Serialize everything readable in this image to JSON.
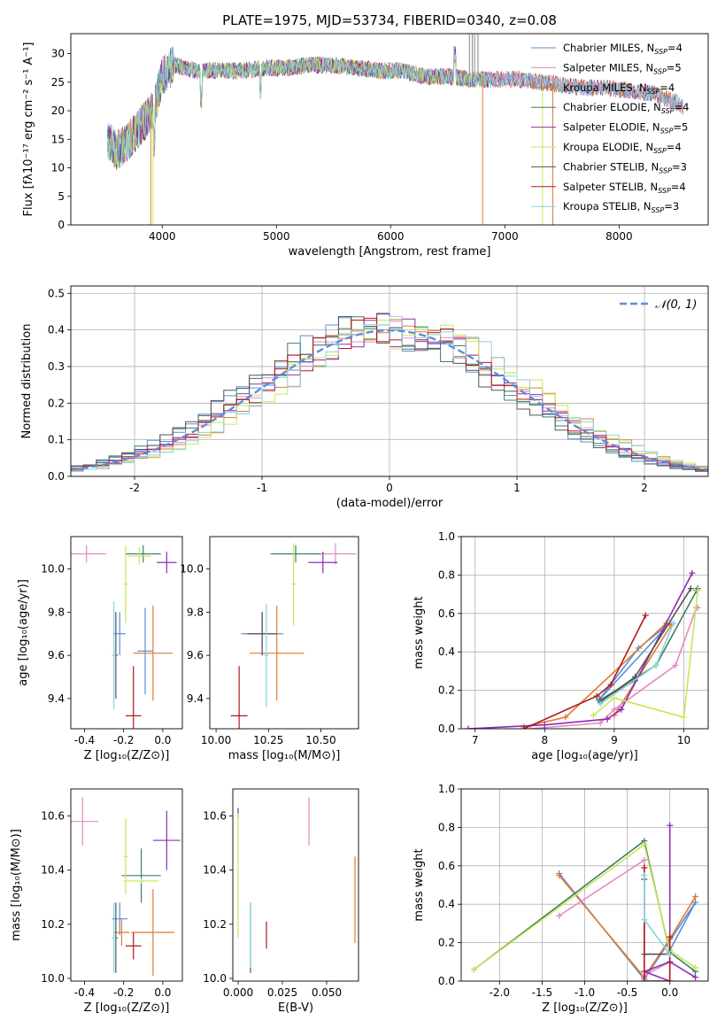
{
  "figure_title": "PLATE=1975, MJD=53734, FIBERID=0340, z=0.08",
  "colors": {
    "C_MILES": "#5b8fd6",
    "S_MILES": "#e38bc3",
    "K_MILES": "#e07b2e",
    "C_ELODIE": "#3f7f5f",
    "S_ELODIE": "#8e2cb5",
    "K_ELODIE": "#c9e65a",
    "C_STELIB": "#555555",
    "S_STELIB": "#b11a1a",
    "K_STELIB": "#86d4df",
    "gauss": "#5b8fd6"
  },
  "chart_data": [
    {
      "id": "spectrum",
      "type": "line",
      "title": "PLATE=1975, MJD=53734, FIBERID=0340, z=0.08",
      "xlabel": "wavelength [Angstrom, rest frame]",
      "ylabel": "Flux [fλ10⁻¹⁷ erg cm⁻² s⁻¹ A⁻¹]",
      "xlim": [
        3200,
        8780
      ],
      "ylim": [
        0,
        33.5
      ],
      "xticks": [
        4000,
        5000,
        6000,
        7000,
        8000
      ],
      "yticks": [
        0,
        5,
        10,
        15,
        20,
        25,
        30
      ],
      "legend_position": "top-right",
      "legend": [
        {
          "key": "C_MILES",
          "label": "Chabrier MILES, N",
          "sub": "SSP",
          "suffix": "=4"
        },
        {
          "key": "S_MILES",
          "label": "Salpeter MILES, N",
          "sub": "SSP",
          "suffix": "=5"
        },
        {
          "key": "K_MILES",
          "label": "Kroupa MILES, N",
          "sub": "SSP",
          "suffix": "=4"
        },
        {
          "key": "C_ELODIE",
          "label": "Chabrier ELODIE, N",
          "sub": "SSP",
          "suffix": "=4"
        },
        {
          "key": "S_ELODIE",
          "label": "Salpeter ELODIE, N",
          "sub": "SSP",
          "suffix": "=5"
        },
        {
          "key": "K_ELODIE",
          "label": "Kroupa ELODIE, N",
          "sub": "SSP",
          "suffix": "=4"
        },
        {
          "key": "C_STELIB",
          "label": "Chabrier STELIB, N",
          "sub": "SSP",
          "suffix": "=3"
        },
        {
          "key": "S_STELIB",
          "label": "Salpeter STELIB, N",
          "sub": "SSP",
          "suffix": "=4"
        },
        {
          "key": "K_STELIB",
          "label": "Kroupa STELIB, N",
          "sub": "SSP",
          "suffix": "=3"
        }
      ],
      "spectrum_envelope": [
        [
          3520,
          15
        ],
        [
          3600,
          13
        ],
        [
          3700,
          14.5
        ],
        [
          3800,
          17
        ],
        [
          3880,
          19
        ],
        [
          3950,
          22
        ],
        [
          4000,
          26
        ],
        [
          4100,
          28
        ],
        [
          4300,
          27
        ],
        [
          4500,
          27
        ],
        [
          4700,
          27
        ],
        [
          4900,
          27.5
        ],
        [
          5100,
          27.5
        ],
        [
          5300,
          28
        ],
        [
          5500,
          28
        ],
        [
          5700,
          27.5
        ],
        [
          5900,
          27
        ],
        [
          6100,
          27
        ],
        [
          6300,
          26
        ],
        [
          6500,
          26
        ],
        [
          6700,
          25.5
        ],
        [
          6900,
          25.5
        ],
        [
          7100,
          25.5
        ],
        [
          7300,
          25
        ],
        [
          7500,
          24.5
        ],
        [
          7700,
          24
        ],
        [
          7900,
          24
        ],
        [
          8100,
          23.5
        ],
        [
          8300,
          23
        ],
        [
          8500,
          21.5
        ],
        [
          8560,
          20.5
        ]
      ]
    },
    {
      "id": "residuals",
      "type": "histogram",
      "xlabel": "(data-model)/error",
      "ylabel": "Normed distribution",
      "xlim": [
        -2.5,
        2.5
      ],
      "ylim": [
        0,
        0.52
      ],
      "xticks": [
        -2,
        -1,
        0,
        1,
        2
      ],
      "yticks": [
        0.0,
        0.1,
        0.2,
        0.3,
        0.4,
        0.5
      ],
      "grid": true,
      "legend_position": "top-right",
      "legend": [
        {
          "key": "gauss",
          "label": "𝒩(0, 1)"
        }
      ],
      "bin_width": 0.1,
      "bin_start": -2.5,
      "gaussian": {
        "mu": 0,
        "sigma": 1
      }
    },
    {
      "id": "age_vs_Z",
      "type": "errorbar",
      "xlabel": "Z [log₁₀(Z/Z⊙)]",
      "ylabel": "age  [log₁₀(age/yr)]",
      "xlim": [
        -0.47,
        0.1
      ],
      "ylim": [
        9.26,
        10.15
      ],
      "xticks": [
        -0.4,
        -0.2,
        0.0
      ],
      "yticks": [
        9.4,
        9.6,
        9.8,
        10.0
      ],
      "points": [
        {
          "key": "S_MILES",
          "x": -0.39,
          "y": 10.07,
          "xe": 0.1,
          "ye": 0.04
        },
        {
          "key": "C_MILES",
          "x": -0.22,
          "y": 9.7,
          "xe": 0.03,
          "ye": 0.1
        },
        {
          "key": "C_MILES",
          "x": -0.09,
          "y": 9.62,
          "xe": 0.04,
          "ye": 0.2
        },
        {
          "key": "K_MILES",
          "x": -0.05,
          "y": 9.61,
          "xe": 0.1,
          "ye": 0.22
        },
        {
          "key": "C_ELODIE",
          "x": -0.1,
          "y": 10.07,
          "xe": 0.09,
          "ye": 0.04
        },
        {
          "key": "S_ELODIE",
          "x": 0.02,
          "y": 10.03,
          "xe": 0.05,
          "ye": 0.05
        },
        {
          "key": "K_ELODIE",
          "x": -0.12,
          "y": 10.06,
          "xe": 0.06,
          "ye": 0.04
        },
        {
          "key": "K_ELODIE",
          "x": -0.19,
          "y": 9.93,
          "xe": 0.01,
          "ye": 0.18
        },
        {
          "key": "C_STELIB",
          "x": -0.24,
          "y": 9.6,
          "xe": 0.01,
          "ye": 0.2
        },
        {
          "key": "S_STELIB",
          "x": -0.15,
          "y": 9.32,
          "xe": 0.04,
          "ye": 0.23
        },
        {
          "key": "K_STELIB",
          "x": -0.25,
          "y": 9.6,
          "xe": 0.01,
          "ye": 0.25
        }
      ]
    },
    {
      "id": "age_vs_mass",
      "type": "errorbar",
      "xlabel": "mass [log₁₀(M/M⊙)]",
      "ylabel": "",
      "xlim": [
        9.97,
        10.68
      ],
      "ylim": [
        9.26,
        10.15
      ],
      "xticks": [
        10.0,
        10.25,
        10.5
      ],
      "yticks": [
        9.4,
        9.6,
        9.8,
        10.0
      ],
      "points": [
        {
          "key": "S_MILES",
          "x": 10.57,
          "y": 10.07,
          "xe": 0.1,
          "ye": 0.05
        },
        {
          "key": "C_MILES",
          "x": 10.22,
          "y": 9.7,
          "xe": 0.1,
          "ye": 0.1
        },
        {
          "key": "K_MILES",
          "x": 10.29,
          "y": 9.61,
          "xe": 0.13,
          "ye": 0.22
        },
        {
          "key": "C_ELODIE",
          "x": 10.38,
          "y": 10.07,
          "xe": 0.12,
          "ye": 0.04
        },
        {
          "key": "S_ELODIE",
          "x": 10.51,
          "y": 10.03,
          "xe": 0.07,
          "ye": 0.05
        },
        {
          "key": "K_ELODIE",
          "x": 10.37,
          "y": 9.93,
          "xe": 0.01,
          "ye": 0.19
        },
        {
          "key": "C_STELIB",
          "x": 10.22,
          "y": 9.7,
          "xe": 0.07,
          "ye": 0.1
        },
        {
          "key": "S_STELIB",
          "x": 10.11,
          "y": 9.32,
          "xe": 0.04,
          "ye": 0.23
        },
        {
          "key": "K_STELIB",
          "x": 10.24,
          "y": 9.6,
          "xe": 0.01,
          "ye": 0.24
        }
      ]
    },
    {
      "id": "weight_vs_age",
      "type": "line",
      "xlabel": "age  [log₁₀(age/yr)]",
      "ylabel": "mass weight",
      "xlim": [
        6.8,
        10.35
      ],
      "ylim": [
        0,
        1.0
      ],
      "xticks": [
        7,
        8,
        9,
        10
      ],
      "yticks": [
        0.0,
        0.2,
        0.4,
        0.6,
        0.8,
        1.0
      ],
      "grid": true,
      "series": [
        {
          "key": "C_MILES",
          "x": [
            8.78,
            9.35,
            9.8,
            8.78
          ],
          "y": [
            0.15,
            0.42,
            0.55,
            0.15
          ]
        },
        {
          "key": "K_MILES",
          "x": [
            7.7,
            8.3,
            9.75,
            9.82,
            9.0
          ],
          "y": [
            0.01,
            0.06,
            0.55,
            0.54,
            0.07
          ]
        },
        {
          "key": "S_MILES",
          "x": [
            7.8,
            8.8,
            9.0,
            9.88,
            10.18,
            10.2
          ],
          "y": [
            0.0,
            0.03,
            0.1,
            0.33,
            0.63,
            0.63
          ]
        },
        {
          "key": "C_ELODIE",
          "x": [
            9.3,
            8.8,
            9.6,
            10.2,
            10.18
          ],
          "y": [
            0.25,
            0.15,
            0.33,
            0.73,
            0.72
          ]
        },
        {
          "key": "S_ELODIE",
          "x": [
            6.9,
            8.0,
            8.9,
            9.1,
            10.12
          ],
          "y": [
            0.0,
            0.02,
            0.05,
            0.1,
            0.81
          ]
        },
        {
          "key": "K_ELODIE",
          "x": [
            8.7,
            9.0,
            10.0,
            10.2
          ],
          "y": [
            0.07,
            0.16,
            0.06,
            0.72
          ]
        },
        {
          "key": "C_STELIB",
          "x": [
            8.8,
            9.3,
            10.1
          ],
          "y": [
            0.14,
            0.27,
            0.73
          ]
        },
        {
          "key": "S_STELIB",
          "x": [
            7.7,
            8.75,
            8.95,
            9.45
          ],
          "y": [
            0.0,
            0.17,
            0.23,
            0.59
          ]
        },
        {
          "key": "K_STELIB",
          "x": [
            8.8,
            9.6,
            9.85
          ],
          "y": [
            0.13,
            0.33,
            0.55
          ]
        }
      ]
    },
    {
      "id": "mass_vs_Z",
      "type": "errorbar",
      "xlabel": "Z [log₁₀(Z/Z⊙)]",
      "ylabel": "mass [log₁₀(M/M⊙)]",
      "xlim": [
        -0.47,
        0.1
      ],
      "ylim": [
        9.99,
        10.7
      ],
      "xticks": [
        -0.4,
        -0.2,
        0.0
      ],
      "yticks": [
        10.0,
        10.2,
        10.4,
        10.6
      ],
      "points": [
        {
          "key": "S_MILES",
          "x": -0.41,
          "y": 10.58,
          "xe": 0.08,
          "ye": 0.09
        },
        {
          "key": "C_MILES",
          "x": -0.22,
          "y": 10.22,
          "xe": 0.04,
          "ye": 0.06
        },
        {
          "key": "K_MILES",
          "x": -0.05,
          "y": 10.17,
          "xe": 0.11,
          "ye": 0.16
        },
        {
          "key": "K_MILES",
          "x": -0.21,
          "y": 10.17,
          "xe": 0.04,
          "ye": 0.05
        },
        {
          "key": "C_ELODIE",
          "x": -0.11,
          "y": 10.38,
          "xe": 0.1,
          "ye": 0.1
        },
        {
          "key": "S_ELODIE",
          "x": 0.02,
          "y": 10.51,
          "xe": 0.07,
          "ye": 0.11
        },
        {
          "key": "K_ELODIE",
          "x": -0.11,
          "y": 10.36,
          "xe": 0.09,
          "ye": 0.01
        },
        {
          "key": "K_ELODIE",
          "x": -0.19,
          "y": 10.45,
          "xe": 0.01,
          "ye": 0.14
        },
        {
          "key": "C_STELIB",
          "x": -0.24,
          "y": 10.15,
          "xe": 0.01,
          "ye": 0.13
        },
        {
          "key": "S_STELIB",
          "x": -0.15,
          "y": 10.12,
          "xe": 0.04,
          "ye": 0.05
        },
        {
          "key": "K_STELIB",
          "x": -0.25,
          "y": 10.15,
          "xe": 0.01,
          "ye": 0.13
        }
      ]
    },
    {
      "id": "mass_vs_ebv",
      "type": "errorbar",
      "xlabel": "E(B-V)",
      "ylabel": "",
      "xlim": [
        -0.003,
        0.068
      ],
      "ylim": [
        9.99,
        10.7
      ],
      "xticks": [
        0.0,
        0.025,
        0.05
      ],
      "yticks": [
        10.0,
        10.2,
        10.4,
        10.6
      ],
      "xticklabels": [
        "0.000",
        "0.025",
        "0.050"
      ],
      "points": [
        {
          "key": "S_ELODIE",
          "x": 0.0,
          "y": 10.61,
          "xe": 0,
          "ye": 0.02
        },
        {
          "key": "K_ELODIE",
          "x": 0.0,
          "y": 10.38,
          "xe": 0,
          "ye": 0.23
        },
        {
          "key": "C_STELIB",
          "x": 0.007,
          "y": 10.15,
          "xe": 0,
          "ye": 0.13
        },
        {
          "key": "K_STELIB",
          "x": 0.007,
          "y": 10.16,
          "xe": 0,
          "ye": 0.12
        },
        {
          "key": "S_STELIB",
          "x": 0.016,
          "y": 10.16,
          "xe": 0,
          "ye": 0.05
        },
        {
          "key": "S_MILES",
          "x": 0.04,
          "y": 10.58,
          "xe": 0,
          "ye": 0.09
        },
        {
          "key": "K_MILES",
          "x": 0.066,
          "y": 10.29,
          "xe": 0,
          "ye": 0.16
        }
      ]
    },
    {
      "id": "weight_vs_Z",
      "type": "line",
      "xlabel": "Z [log₁₀(Z/Z⊙)]",
      "ylabel": "mass weight",
      "xlim": [
        -2.45,
        0.45
      ],
      "ylim": [
        0,
        1.0
      ],
      "xticks": [
        -2.0,
        -1.5,
        -1.0,
        -0.5,
        0.0
      ],
      "yticks": [
        0.0,
        0.2,
        0.4,
        0.6,
        0.8,
        1.0
      ],
      "grid": true,
      "series": [
        {
          "key": "C_MILES",
          "x": [
            -1.3,
            -0.3,
            0.3,
            0.0
          ],
          "y": [
            0.56,
            0.01,
            0.41,
            0.16
          ]
        },
        {
          "key": "K_MILES",
          "x": [
            -1.3,
            -0.3,
            0.0,
            0.3
          ],
          "y": [
            0.55,
            0.02,
            0.22,
            0.44
          ]
        },
        {
          "key": "S_MILES",
          "x": [
            -1.3,
            -0.3,
            -0.3,
            0.0
          ],
          "y": [
            0.34,
            0.63,
            0.03,
            0.1
          ]
        },
        {
          "key": "C_ELODIE",
          "x": [
            -2.3,
            -0.3,
            0.0,
            0.3
          ],
          "y": [
            0.06,
            0.73,
            0.15,
            0.05
          ]
        },
        {
          "key": "S_ELODIE",
          "x": [
            0.0,
            0.0,
            -0.3,
            0.0,
            0.3
          ],
          "y": [
            0.81,
            0.0,
            0.05,
            0.1,
            0.02
          ]
        },
        {
          "key": "K_ELODIE",
          "x": [
            -2.3,
            -0.3,
            0.0,
            0.3
          ],
          "y": [
            0.06,
            0.71,
            0.16,
            0.07
          ]
        },
        {
          "key": "C_STELIB",
          "x": [
            -0.3,
            -0.3,
            0.0
          ],
          "y": [
            0.53,
            0.14,
            0.14
          ]
        },
        {
          "key": "S_STELIB",
          "x": [
            -0.3,
            -0.3,
            0.0,
            0.0
          ],
          "y": [
            0.59,
            0.0,
            0.0,
            0.23
          ]
        },
        {
          "key": "K_STELIB",
          "x": [
            -0.3,
            -0.3,
            0.0
          ],
          "y": [
            0.55,
            0.32,
            0.14
          ]
        }
      ]
    }
  ]
}
